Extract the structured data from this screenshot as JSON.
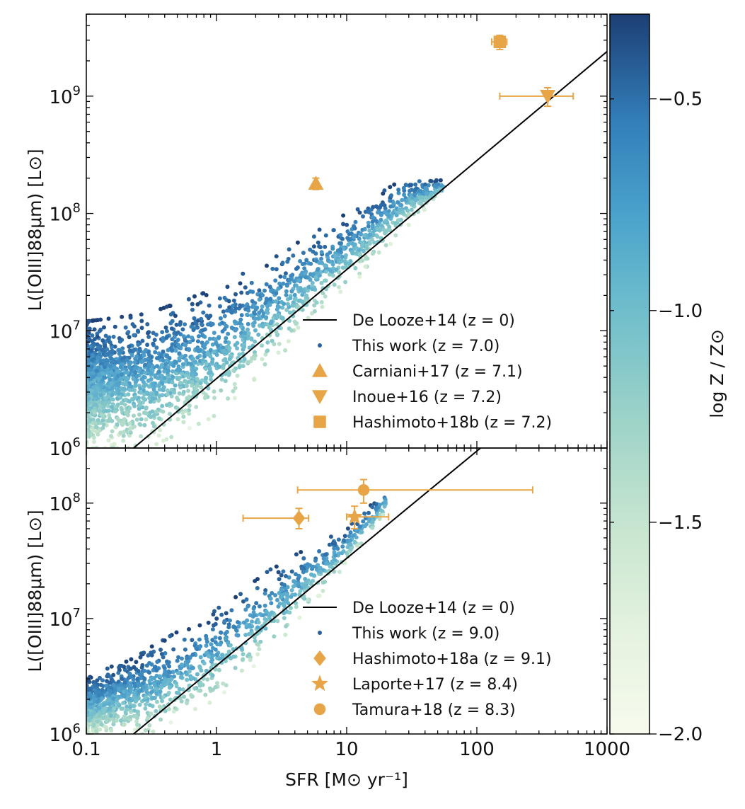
{
  "chart_data": [
    {
      "type": "scatter",
      "panel": "top",
      "xscale": "log",
      "yscale": "log",
      "xlim": [
        0.1,
        1000
      ],
      "ylim": [
        1000000.0,
        5000000000.0
      ],
      "ylabel": "L([OIII]88μm) [L⊙]",
      "x_ticks": [
        "0.1",
        "1",
        "10",
        "100",
        "1000"
      ],
      "y_ticks": [
        {
          "value": 1000000.0,
          "base": "10",
          "exp": "6"
        },
        {
          "value": 10000000.0,
          "base": "10",
          "exp": "7"
        },
        {
          "value": 100000000.0,
          "base": "10",
          "exp": "8"
        },
        {
          "value": 1000000000.0,
          "base": "10",
          "exp": "9"
        }
      ],
      "legend_position": "lower-right",
      "series": [
        {
          "name": "De Looze+14 (z = 0)",
          "kind": "line",
          "color": "#000000",
          "x": [
            0.1,
            1000
          ],
          "y": [
            460000.0,
            2400000000.0
          ]
        },
        {
          "name": "This work (z = 7.0)",
          "kind": "scatter-cloud",
          "color": "#2b5f9e",
          "sfr_range": [
            0.1,
            56
          ],
          "upper_envelope": {
            "x": [
              0.1,
              0.3,
              1,
              3,
              10,
              30,
              56
            ],
            "y": [
              12000000.0,
              14000000.0,
              23000000.0,
              45000000.0,
              100000000.0,
              210000000.0,
              190000000.0
            ]
          },
          "lower_envelope": {
            "x": [
              0.1,
              0.3,
              1,
              3,
              10,
              30,
              56
            ],
            "y": [
              1000000.0,
              1000000.0,
              1900000.0,
              6000000.0,
              22000000.0,
              80000000.0,
              150000000.0
            ]
          }
        },
        {
          "name": "Carniani+17 (z = 7.1)",
          "kind": "point",
          "marker": "triangle-up",
          "color": "#e8a547",
          "points": [
            {
              "x": 5.8,
              "y": 180000000.0,
              "yerr": [
                20000000.0,
                20000000.0
              ]
            }
          ]
        },
        {
          "name": "Inoue+16 (z = 7.2)",
          "kind": "point",
          "marker": "triangle-down",
          "color": "#e8a547",
          "points": [
            {
              "x": 350,
              "y": 1000000000.0,
              "xerr": [
                200,
                200
              ],
              "yerr": [
                180000000.0,
                180000000.0
              ]
            }
          ]
        },
        {
          "name": "Hashimoto+18b (z = 7.2)",
          "kind": "point",
          "marker": "square",
          "color": "#e8a547",
          "points": [
            {
              "x": 150,
              "y": 2900000000.0,
              "xerr": [
                20,
                20
              ],
              "yerr": [
                400000000.0,
                400000000.0
              ]
            }
          ]
        }
      ]
    },
    {
      "type": "scatter",
      "panel": "bottom",
      "xscale": "log",
      "yscale": "log",
      "xlim": [
        0.1,
        1000
      ],
      "ylim": [
        1000000.0,
        300000000.0
      ],
      "xlabel": "SFR [M⊙ yr⁻¹]",
      "ylabel": "L([OIII]88μm) [L⊙]",
      "x_ticks": [
        "0.1",
        "1",
        "10",
        "100",
        "1000"
      ],
      "y_ticks": [
        {
          "value": 1000000.0,
          "base": "10",
          "exp": "6"
        },
        {
          "value": 10000000.0,
          "base": "10",
          "exp": "7"
        },
        {
          "value": 100000000.0,
          "base": "10",
          "exp": "8"
        }
      ],
      "legend_position": "lower-right",
      "series": [
        {
          "name": "De Looze+14 (z = 0)",
          "kind": "line",
          "color": "#000000",
          "x": [
            0.1,
            1000
          ],
          "y": [
            460000.0,
            2400000000.0
          ]
        },
        {
          "name": "This work (z = 9.0)",
          "kind": "scatter-cloud",
          "color": "#2b5f9e",
          "sfr_range": [
            0.1,
            20
          ],
          "upper_envelope": {
            "x": [
              0.1,
              0.3,
              1,
              3,
              10,
              20
            ],
            "y": [
              3000000.0,
              5500000.0,
              12000000.0,
              30000000.0,
              60000000.0,
              130000000.0
            ]
          },
          "lower_envelope": {
            "x": [
              0.1,
              0.3,
              1,
              3,
              10,
              20
            ],
            "y": [
              1000000.0,
              1000000.0,
              2000000.0,
              6000000.0,
              30000000.0,
              80000000.0
            ]
          }
        },
        {
          "name": "Hashimoto+18a (z = 9.1)",
          "kind": "point",
          "marker": "diamond",
          "color": "#e8a547",
          "points": [
            {
              "x": 4.3,
              "y": 74000000.0,
              "xerr": [
                2.7,
                0.8
              ],
              "yerr": [
                14000000.0,
                16000000.0
              ]
            }
          ]
        },
        {
          "name": "Laporte+17 (z = 8.4)",
          "kind": "point",
          "marker": "star",
          "color": "#e8a547",
          "points": [
            {
              "x": 11.5,
              "y": 76000000.0,
              "xerr": [
                1.5,
                9.5
              ],
              "yerr": [
                16000000.0,
                18000000.0
              ]
            }
          ]
        },
        {
          "name": "Tamura+18 (z = 8.3)",
          "kind": "point",
          "marker": "circle",
          "color": "#e8a547",
          "points": [
            {
              "x": 13.5,
              "y": 130000000.0,
              "xerr": [
                9.3,
                255
              ],
              "yerr": [
                30000000.0,
                30000000.0
              ]
            }
          ]
        }
      ]
    }
  ],
  "colorbar": {
    "label": "log Z / Z⊙",
    "range": [
      -2.0,
      -0.3
    ],
    "ticks": [
      "−0.5",
      "−1.0",
      "−1.5",
      "−2.0"
    ],
    "colors": [
      "#f7fbee",
      "#d5ecd3",
      "#a7d6c6",
      "#7cc3cb",
      "#57a9ce",
      "#3b86bd",
      "#2b649e",
      "#1c3f74"
    ]
  }
}
